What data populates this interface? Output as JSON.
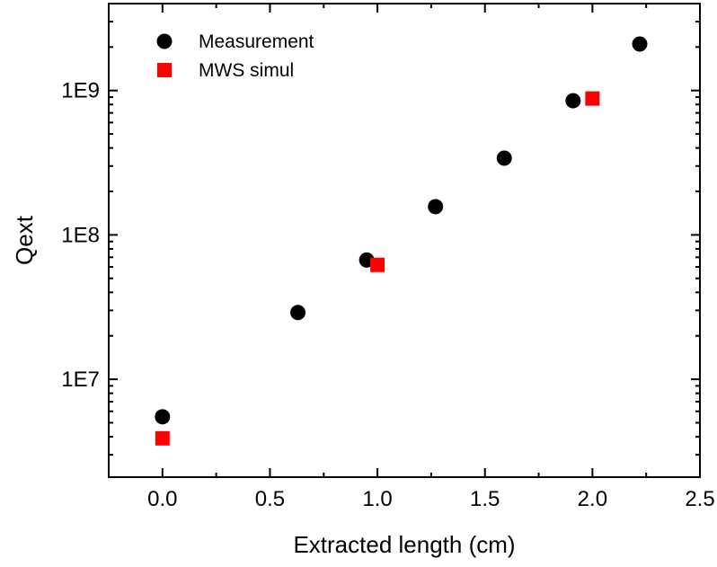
{
  "chart_data": {
    "type": "scatter",
    "title": "",
    "xlabel": "Extracted length (cm)",
    "ylabel": "Qext",
    "xlim": [
      -0.25,
      2.5
    ],
    "ylim": [
      2100000,
      4000000000
    ],
    "yscale": "log",
    "grid": false,
    "legend_position": "top-left",
    "x_ticks": [
      {
        "value": 0.0,
        "label": "0.0"
      },
      {
        "value": 0.5,
        "label": "0.5"
      },
      {
        "value": 1.0,
        "label": "1.0"
      },
      {
        "value": 1.5,
        "label": "1.5"
      },
      {
        "value": 2.0,
        "label": "2.0"
      },
      {
        "value": 2.5,
        "label": "2.5"
      }
    ],
    "y_ticks": [
      {
        "value": 10000000,
        "label": "1E7"
      },
      {
        "value": 100000000,
        "label": "1E8"
      },
      {
        "value": 1000000000,
        "label": "1E9"
      }
    ],
    "series": [
      {
        "name": "Measurement",
        "marker": "circle",
        "color": "#000000",
        "points": [
          {
            "x": 0.0,
            "y": 5500000
          },
          {
            "x": 0.63,
            "y": 29000000
          },
          {
            "x": 0.95,
            "y": 67000000
          },
          {
            "x": 1.27,
            "y": 157000000
          },
          {
            "x": 1.59,
            "y": 340000000
          },
          {
            "x": 1.91,
            "y": 850000000
          },
          {
            "x": 2.22,
            "y": 2100000000
          }
        ]
      },
      {
        "name": "MWS simul",
        "marker": "square",
        "color": "#ff0000",
        "points": [
          {
            "x": 0.0,
            "y": 3900000
          },
          {
            "x": 1.0,
            "y": 62000000
          },
          {
            "x": 2.0,
            "y": 880000000
          }
        ]
      }
    ]
  }
}
